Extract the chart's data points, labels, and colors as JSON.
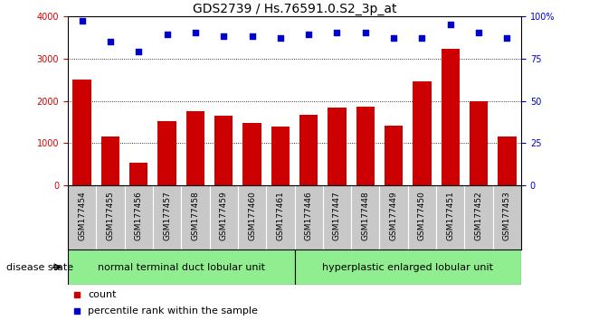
{
  "title": "GDS2739 / Hs.76591.0.S2_3p_at",
  "categories": [
    "GSM177454",
    "GSM177455",
    "GSM177456",
    "GSM177457",
    "GSM177458",
    "GSM177459",
    "GSM177460",
    "GSM177461",
    "GSM177446",
    "GSM177447",
    "GSM177448",
    "GSM177449",
    "GSM177450",
    "GSM177451",
    "GSM177452",
    "GSM177453"
  ],
  "bar_values": [
    2500,
    1150,
    550,
    1520,
    1750,
    1650,
    1480,
    1400,
    1670,
    1840,
    1860,
    1420,
    2460,
    3220,
    2000,
    1160
  ],
  "scatter_values": [
    97,
    85,
    79,
    89,
    90,
    88,
    88,
    87,
    89,
    90,
    90,
    87,
    87,
    95,
    90,
    87
  ],
  "bar_color": "#cc0000",
  "scatter_color": "#0000cc",
  "ylim_left": [
    0,
    4000
  ],
  "ylim_right": [
    0,
    100
  ],
  "yticks_left": [
    0,
    1000,
    2000,
    3000,
    4000
  ],
  "yticks_right": [
    0,
    25,
    50,
    75,
    100
  ],
  "yticklabels_right": [
    "0",
    "25",
    "50",
    "75",
    "100%"
  ],
  "grid_values": [
    1000,
    2000,
    3000
  ],
  "group1_label": "normal terminal duct lobular unit",
  "group2_label": "hyperplastic enlarged lobular unit",
  "group1_count": 8,
  "group2_count": 8,
  "disease_state_label": "disease state",
  "legend_count_label": "count",
  "legend_percentile_label": "percentile rank within the sample",
  "bg_color": "#ffffff",
  "plot_bg_color": "#ffffff",
  "tick_area_bg": "#c8c8c8",
  "group_bg": "#90ee90",
  "title_fontsize": 10,
  "tick_fontsize": 7,
  "axis_color_left": "#cc0000",
  "axis_color_right": "#0000cc"
}
